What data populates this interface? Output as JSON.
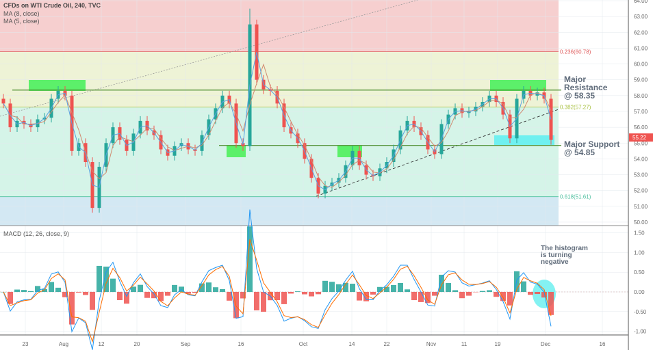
{
  "header": {
    "title": "CFDs on WTI Crude Oil, 240, TVC",
    "ma1": "MA (8, close)",
    "ma2": "MA (5, close)",
    "macd": "MACD (12, 26, close, 9)"
  },
  "annotations": {
    "resistance": [
      "Major Resistance",
      "@ 58.35"
    ],
    "support": [
      "Major Support",
      "@ 54.85"
    ],
    "histogram": [
      "The histogram",
      "is turning",
      "negative"
    ]
  },
  "colors": {
    "up": "#26a69a",
    "down": "#ef5350",
    "ma_fast": "#5aa0e0",
    "ma_slow": "#d08a70",
    "macd": "#2196f3",
    "signal": "#ff6d00",
    "fib_red": "#f6cfcf",
    "fib_yellow": "#eef3d6",
    "fib_green": "#d5f4e8",
    "fib_blue": "#d3e8f3",
    "highlight_green": "#5cf06a",
    "highlight_cyan": "#6ff0f0"
  },
  "chart_data": [
    {
      "type": "candlestick",
      "title": "CFDs on WTI Crude Oil, 240, TVC",
      "x_ticks": [
        "23",
        "Aug",
        "12",
        "20",
        "Sep",
        "16",
        "Oct",
        "14",
        "22",
        "Nov",
        "11",
        "19",
        "Dec",
        "16"
      ],
      "y_ticks": [
        "50.00",
        "51.00",
        "52.00",
        "53.00",
        "54.00",
        "55.00",
        "56.00",
        "57.00",
        "58.00",
        "59.00",
        "60.00",
        "61.00",
        "62.00",
        "63.00",
        "64.00"
      ],
      "ylim": [
        50,
        64
      ],
      "last_price": "55.22",
      "closes": [
        57.5,
        56.0,
        56.4,
        56.2,
        56.0,
        56.5,
        56.6,
        57.8,
        58.3,
        58.0,
        54.5,
        55.0,
        53.8,
        50.9,
        53.5,
        55.0,
        56.0,
        55.2,
        54.5,
        55.6,
        56.4,
        55.8,
        55.5,
        54.6,
        54.2,
        54.8,
        55.0,
        54.6,
        54.5,
        55.5,
        56.5,
        57.2,
        58.0,
        57.5,
        55.0,
        54.8,
        62.5,
        59.0,
        58.4,
        58.3,
        57.5,
        56.0,
        55.6,
        55.0,
        54.0,
        52.8,
        51.8,
        52.3,
        52.5,
        52.8,
        53.6,
        54.5,
        53.6,
        53.0,
        52.9,
        53.4,
        53.8,
        54.6,
        55.8,
        56.4,
        56.0,
        55.5,
        54.6,
        54.3,
        56.2,
        56.8,
        57.2,
        56.9,
        57.0,
        57.3,
        57.6,
        58.0,
        57.6,
        56.8,
        55.3,
        57.8,
        58.3,
        58.0,
        58.2,
        57.8,
        55.2
      ],
      "fib_levels": [
        {
          "label": "0.236(60.78)",
          "value": 60.78
        },
        {
          "label": "0.382(57.27)",
          "value": 57.27
        },
        {
          "label": "0.618(51.61)",
          "value": 51.61
        }
      ],
      "horizontal_levels": {
        "resistance": 58.35,
        "support": 54.85
      }
    },
    {
      "type": "line+bar",
      "title": "MACD (12, 26, close, 9)",
      "y_ticks": [
        "-1.00",
        "-0.50",
        "0.00",
        "0.50",
        "1.00",
        "1.50"
      ],
      "ylim": [
        -1.1,
        1.6
      ]
    }
  ]
}
